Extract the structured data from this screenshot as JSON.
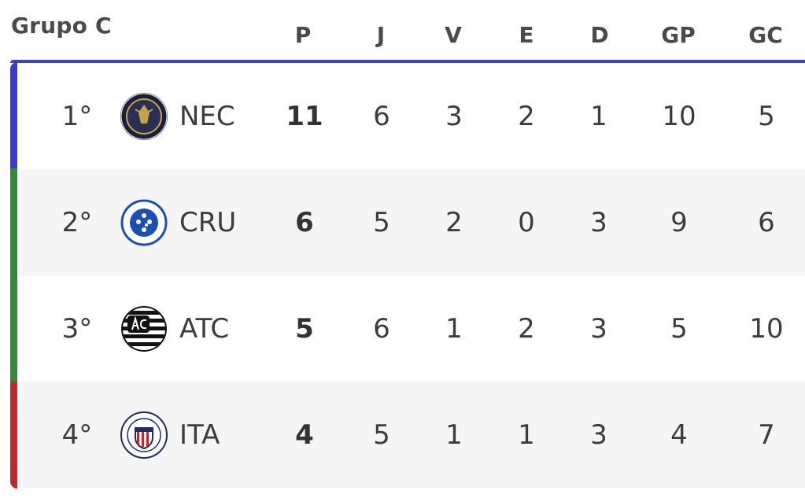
{
  "group": {
    "title": "Grupo C"
  },
  "columns": [
    "P",
    "J",
    "V",
    "E",
    "D",
    "GP",
    "GC"
  ],
  "rows": [
    {
      "position": "1°",
      "team": "NEC",
      "crest_icon": "north-esporte-clube-crest-icon",
      "zone_color": "#3b3bd1",
      "stats": [
        "11",
        "6",
        "3",
        "2",
        "1",
        "10",
        "5"
      ]
    },
    {
      "position": "2°",
      "team": "CRU",
      "crest_icon": "cruzeiro-crest-icon",
      "zone_color": "#2f8a3a",
      "stats": [
        "6",
        "5",
        "2",
        "0",
        "3",
        "9",
        "6"
      ]
    },
    {
      "position": "3°",
      "team": "ATC",
      "crest_icon": "atletico-crest-icon",
      "zone_color": "#2f8a3a",
      "stats": [
        "5",
        "6",
        "1",
        "2",
        "3",
        "5",
        "10"
      ]
    },
    {
      "position": "4°",
      "team": "ITA",
      "crest_icon": "itabirito-crest-icon",
      "zone_color": "#c0282d",
      "stats": [
        "4",
        "5",
        "1",
        "1",
        "3",
        "4",
        "7"
      ]
    }
  ],
  "colors": {
    "header_border": "#4040c0",
    "promotion_zone": "#3b3bd1",
    "qualification_zone": "#2f8a3a",
    "relegation_zone": "#c0282d",
    "alt_row": "#f5f5f5"
  }
}
